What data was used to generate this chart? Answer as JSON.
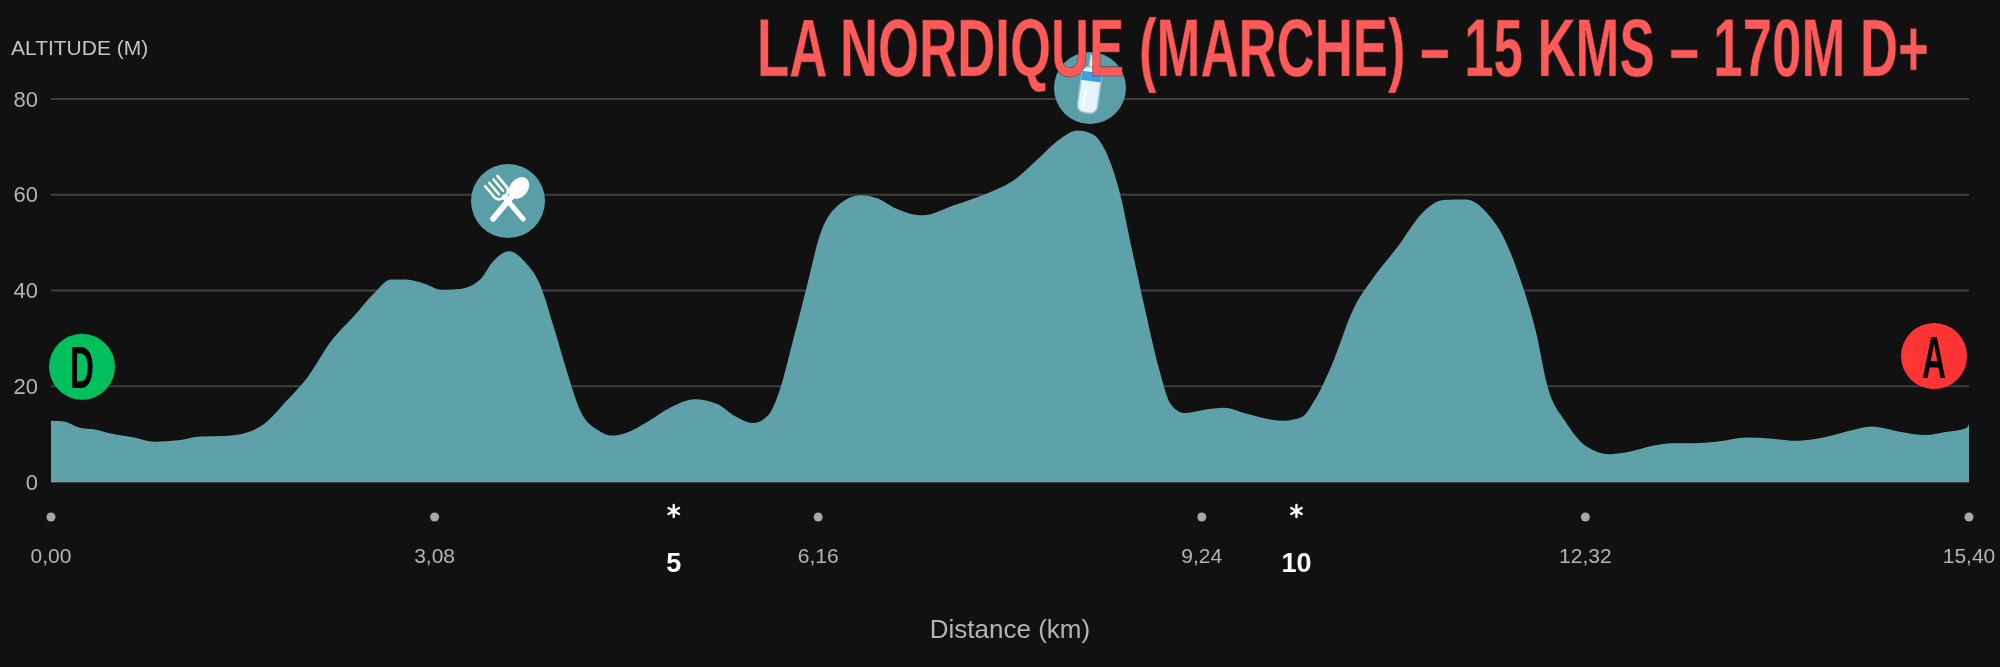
{
  "chart_data": {
    "type": "area",
    "title": "LA NORDIQUE (MARCHE) – 15 KMS – 170M D+",
    "xlabel": "Distance (km)",
    "ylabel": "ALTITUDE (M)",
    "x": [
      0,
      0.09,
      0.24,
      0.34,
      0.47,
      0.67,
      0.83,
      1.02,
      1.2,
      1.38,
      1.58,
      1.71,
      1.89,
      2.06,
      2.26,
      2.42,
      2.6,
      2.73,
      2.85,
      3,
      3.14,
      3.28,
      3.45,
      3.55,
      3.68,
      3.8,
      3.93,
      4.04,
      4.14,
      4.25,
      4.4,
      4.5,
      4.61,
      4.79,
      4.97,
      5.17,
      5.35,
      5.49,
      5.64,
      5.76,
      5.85,
      5.96,
      6.07,
      6.17,
      6.32,
      6.5,
      6.64,
      6.77,
      7,
      7.25,
      7.5,
      7.75,
      7.93,
      8.11,
      8.24,
      8.36,
      8.47,
      8.58,
      8.68,
      8.79,
      8.9,
      8.99,
      9.1,
      9.26,
      9.42,
      9.58,
      9.76,
      9.9,
      10.04,
      10.14,
      10.28,
      10.46,
      10.61,
      10.82,
      11,
      11.18,
      11.36,
      11.54,
      11.66,
      11.79,
      11.92,
      12.02,
      12.15,
      12.33,
      12.51,
      12.65,
      12.87,
      13.01,
      13.19,
      13.37,
      13.62,
      13.8,
      14.01,
      14.23,
      14.44,
      14.62,
      14.73,
      14.87,
      15.05,
      15.2,
      15.38,
      15.4
    ],
    "values": [
      12.8,
      12.7,
      11.3,
      11,
      10.2,
      9.3,
      8.4,
      8.7,
      9.5,
      9.6,
      10.4,
      12.1,
      16.9,
      21.9,
      29.8,
      34.3,
      39.6,
      42.3,
      42.3,
      41.4,
      40.1,
      40.3,
      42.4,
      46.1,
      48.2,
      46.1,
      41,
      32.1,
      23.3,
      14.9,
      10.7,
      9.7,
      10.2,
      12.6,
      15.5,
      17.3,
      16.3,
      13.8,
      12.3,
      14,
      19.1,
      29.8,
      41,
      51.3,
      57.8,
      59.9,
      59.2,
      57.3,
      55.7,
      57.8,
      60.1,
      63.4,
      67.6,
      71.8,
      73.4,
      72.7,
      69,
      60.6,
      48.5,
      35.4,
      23.3,
      16.3,
      14.4,
      15.1,
      15.5,
      14.4,
      13.2,
      12.8,
      13.5,
      16.8,
      24.2,
      36.3,
      42.4,
      49.4,
      55.9,
      58.9,
      59,
      55.9,
      51.3,
      42.9,
      31.7,
      19.6,
      13,
      7.4,
      5.8,
      6.2,
      7.6,
      8.1,
      8.1,
      8.4,
      9.3,
      9.1,
      8.6,
      9.3,
      10.7,
      11.6,
      11.2,
      10.4,
      9.8,
      10.4,
      11.3,
      12.1
    ],
    "color": "#5ea1a8",
    "xlim": [
      0,
      15.4
    ],
    "xticks": [
      {
        "value": 0,
        "label": "0,00"
      },
      {
        "value": 3.08,
        "label": "3,08"
      },
      5,
      {
        "value": 6.16,
        "label": "6,16"
      },
      {
        "value": 9.24,
        "label": "9,24"
      },
      10,
      {
        "value": 12.32,
        "label": "12,32"
      },
      {
        "value": 15.4,
        "label": "15,40"
      }
    ],
    "ylim": [
      0,
      80
    ],
    "yticks": [
      0,
      20,
      40,
      60,
      80
    ],
    "grid": "y",
    "annotations": [
      "D",
      "A"
    ]
  }
}
